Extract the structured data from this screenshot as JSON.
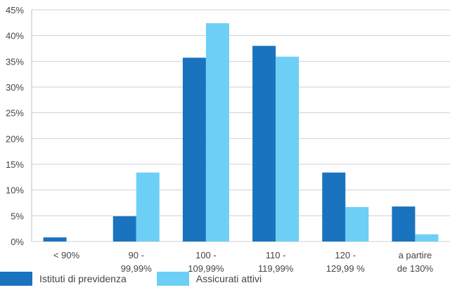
{
  "chart_data": {
    "type": "bar",
    "categories": [
      [
        "< 90%"
      ],
      [
        "90 -",
        "99,99%"
      ],
      [
        "100 -",
        "109,99%"
      ],
      [
        "110 -",
        "119,99%"
      ],
      [
        "120 -",
        "129,99 %"
      ],
      [
        "a partire",
        "de 130%"
      ]
    ],
    "series": [
      {
        "name": "Istituti di previdenza",
        "color": "#1a73be",
        "values": [
          0.8,
          4.9,
          35.7,
          38.0,
          13.4,
          6.8
        ]
      },
      {
        "name": "Assicurati attivi",
        "color": "#6dcff6",
        "values": [
          0.0,
          13.4,
          42.4,
          35.9,
          6.7,
          1.4
        ]
      }
    ],
    "ylim": [
      0,
      45
    ],
    "yticks": [
      0,
      5,
      10,
      15,
      20,
      25,
      30,
      35,
      40,
      45
    ],
    "ytick_labels": [
      "0%",
      "5%",
      "10%",
      "15%",
      "20%",
      "25%",
      "30%",
      "35%",
      "40%",
      "45%"
    ],
    "grid": true,
    "legend_position": "bottom-left"
  }
}
